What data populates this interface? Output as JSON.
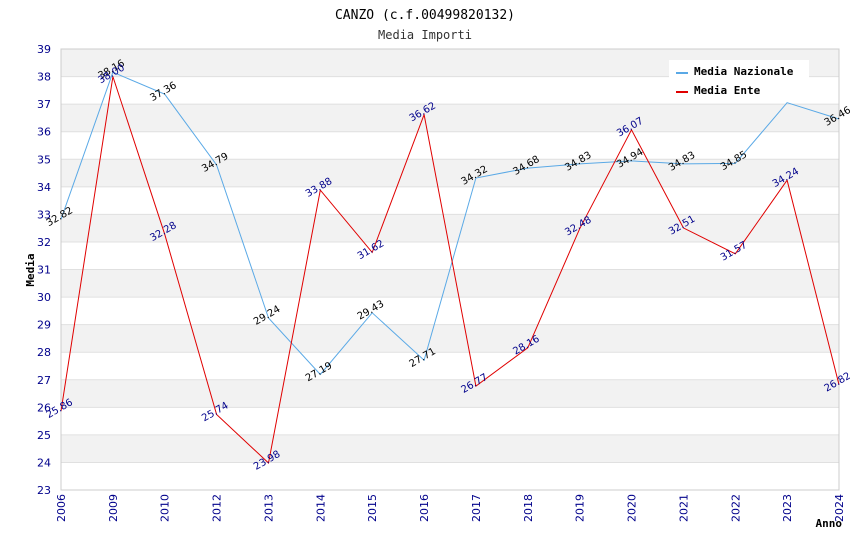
{
  "chart_data": {
    "type": "line",
    "title": "CANZO (c.f.00499820132)",
    "subtitle": "Media Importi",
    "xlabel": "Anno",
    "ylabel": "Media",
    "ylim": [
      23,
      39
    ],
    "yticks": [
      23,
      24,
      25,
      26,
      27,
      28,
      29,
      30,
      31,
      32,
      33,
      34,
      35,
      36,
      37,
      38,
      39
    ],
    "categories": [
      "2006",
      "2009",
      "2010",
      "2012",
      "2013",
      "2014",
      "2015",
      "2016",
      "2017",
      "2018",
      "2019",
      "2020",
      "2021",
      "2022",
      "2023",
      "2024"
    ],
    "grid": true,
    "legend_position": "top-right",
    "series": [
      {
        "name": "Media Nazionale",
        "color": "#5aa9e6",
        "label_color": "#000000",
        "values": [
          32.82,
          38.16,
          37.36,
          34.79,
          29.24,
          27.19,
          29.43,
          27.71,
          34.32,
          34.68,
          34.83,
          34.94,
          34.83,
          34.85,
          37.05,
          36.46
        ],
        "labels": [
          "32.82",
          "38.16",
          "37.36",
          "34.79",
          "29.24",
          "27.19",
          "29.43",
          "27.71",
          "34.32",
          "34.68",
          "34.83",
          "34.94",
          "34.83",
          "34.85",
          "",
          "36.46"
        ]
      },
      {
        "name": "Media Ente",
        "color": "#e00000",
        "label_color": "#00008b",
        "values": [
          25.86,
          38.0,
          32.28,
          25.74,
          23.98,
          33.88,
          31.62,
          36.62,
          26.77,
          28.16,
          32.48,
          36.07,
          32.51,
          31.57,
          34.24,
          26.82
        ],
        "labels": [
          "25.86",
          "38.00",
          "32.28",
          "25.74",
          "23.98",
          "33.88",
          "31.62",
          "36.62",
          "26.77",
          "28.16",
          "32.48",
          "36.07",
          "32.51",
          "31.57",
          "34.24",
          "26.82"
        ]
      }
    ]
  }
}
